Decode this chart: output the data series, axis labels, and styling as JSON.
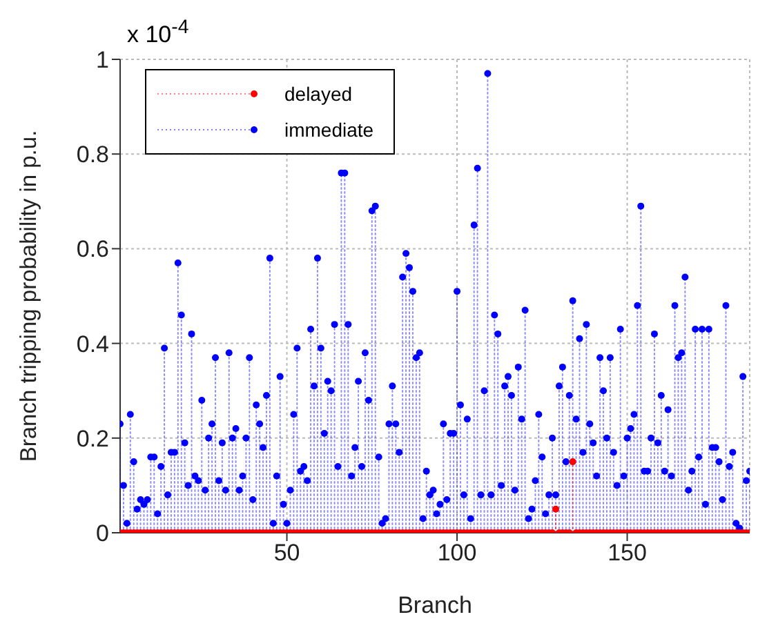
{
  "chart_data": {
    "type": "lollipop",
    "xlabel": "Branch",
    "ylabel": "Branch tripping probability in p.u.",
    "annotations": [
      "x 10$^{-4}$"
    ],
    "x": [
      1,
      2,
      3,
      4,
      5,
      6,
      7,
      8,
      9,
      10,
      11,
      12,
      13,
      14,
      15,
      16,
      17,
      18,
      19,
      20,
      21,
      22,
      23,
      24,
      25,
      26,
      27,
      28,
      29,
      30,
      31,
      32,
      33,
      34,
      35,
      36,
      37,
      38,
      39,
      40,
      41,
      42,
      43,
      44,
      45,
      46,
      47,
      48,
      49,
      50,
      51,
      52,
      53,
      54,
      55,
      56,
      57,
      58,
      59,
      60,
      61,
      62,
      63,
      64,
      65,
      66,
      67,
      68,
      69,
      70,
      71,
      72,
      73,
      74,
      75,
      76,
      77,
      78,
      79,
      80,
      81,
      82,
      83,
      84,
      85,
      86,
      87,
      88,
      89,
      90,
      91,
      92,
      93,
      94,
      95,
      96,
      97,
      98,
      99,
      100,
      101,
      102,
      103,
      104,
      105,
      106,
      107,
      108,
      109,
      110,
      111,
      112,
      113,
      114,
      115,
      116,
      117,
      118,
      119,
      120,
      121,
      122,
      123,
      124,
      125,
      126,
      127,
      128,
      129,
      130,
      131,
      132,
      133,
      134,
      135,
      136,
      137,
      138,
      139,
      140,
      141,
      142,
      143,
      144,
      145,
      146,
      147,
      148,
      149,
      150,
      151,
      152,
      153,
      154,
      155,
      156,
      157,
      158,
      159,
      160,
      161,
      162,
      163,
      164,
      165,
      166,
      167,
      168,
      169,
      170,
      171,
      172,
      173,
      174,
      175,
      176,
      177,
      178,
      179,
      180,
      181,
      182,
      183,
      184,
      185,
      186
    ],
    "series": [
      {
        "name": "immediate",
        "color": "#0000ff",
        "values": [
          0.23,
          0.1,
          0.02,
          0.25,
          0.15,
          0.05,
          0.07,
          0.06,
          0.07,
          0.16,
          0.16,
          0.04,
          0.14,
          0.39,
          0.08,
          0.17,
          0.17,
          0.57,
          0.46,
          0.19,
          0.1,
          0.42,
          0.12,
          0.11,
          0.28,
          0.09,
          0.2,
          0.23,
          0.37,
          0.11,
          0.19,
          0.09,
          0.38,
          0.2,
          0.22,
          0.09,
          0.12,
          0.2,
          0.37,
          0.07,
          0.27,
          0.23,
          0.18,
          0.29,
          0.58,
          0.02,
          0.12,
          0.33,
          0.06,
          0.02,
          0.09,
          0.25,
          0.39,
          0.13,
          0.14,
          0.11,
          0.43,
          0.31,
          0.58,
          0.39,
          0.21,
          0.32,
          0.3,
          0.44,
          0.14,
          0.76,
          0.76,
          0.44,
          0.12,
          0.18,
          0.32,
          0.14,
          0.38,
          0.28,
          0.68,
          0.69,
          0.16,
          0.02,
          0.03,
          0.23,
          0.31,
          0.23,
          0.17,
          0.54,
          0.59,
          0.56,
          0.51,
          0.37,
          0.38,
          0.03,
          0.13,
          0.08,
          0.09,
          0.04,
          0.06,
          0.23,
          0.07,
          0.21,
          0.21,
          0.51,
          0.27,
          0.08,
          0.24,
          0.03,
          0.65,
          0.77,
          0.08,
          0.3,
          0.97,
          0.08,
          0.46,
          0.42,
          0.1,
          0.31,
          0.33,
          0.29,
          0.09,
          0.35,
          0.24,
          0.47,
          0.03,
          0.05,
          0.11,
          0.25,
          0.16,
          0.04,
          0.08,
          0.2,
          0.08,
          0.31,
          0.35,
          0.15,
          0.29,
          0.49,
          0.24,
          0.41,
          0.17,
          0.44,
          0.23,
          0.19,
          0.12,
          0.37,
          0.3,
          0.2,
          0.37,
          0.17,
          0.1,
          0.43,
          0.12,
          0.2,
          0.22,
          0.25,
          0.48,
          0.69,
          0.13,
          0.13,
          0.2,
          0.42,
          0.19,
          0.29,
          0.13,
          0.26,
          0.12,
          0.48,
          0.37,
          0.38,
          0.54,
          0.09,
          0.13,
          0.43,
          0.16,
          0.43,
          0.06,
          0.43,
          0.18,
          0.18,
          0.15,
          0.07,
          0.48,
          0.14,
          0.17,
          0.02,
          0.01,
          0.33,
          0.11,
          0.13
        ]
      },
      {
        "name": "delayed",
        "color": "#ff0000",
        "values": [
          0,
          0,
          0,
          0,
          0,
          0,
          0,
          0,
          0,
          0,
          0,
          0,
          0,
          0,
          0,
          0,
          0,
          0,
          0,
          0,
          0,
          0,
          0,
          0,
          0,
          0,
          0,
          0,
          0,
          0,
          0,
          0,
          0,
          0,
          0,
          0,
          0,
          0,
          0,
          0,
          0,
          0,
          0,
          0,
          0,
          0,
          0,
          0,
          0,
          0,
          0,
          0,
          0,
          0,
          0,
          0,
          0,
          0,
          0,
          0,
          0,
          0,
          0,
          0,
          0,
          0,
          0,
          0,
          0,
          0,
          0,
          0,
          0,
          0,
          0,
          0,
          0,
          0,
          0,
          0,
          0,
          0,
          0,
          0,
          0,
          0,
          0,
          0,
          0,
          0,
          0,
          0,
          0,
          0,
          0,
          0,
          0,
          0,
          0,
          0,
          0,
          0,
          0,
          0,
          0,
          0,
          0,
          0,
          0,
          0,
          0,
          0,
          0,
          0,
          0,
          0,
          0,
          0,
          0,
          0,
          0,
          0,
          0,
          0,
          0,
          0,
          0,
          0,
          0.05,
          0,
          0,
          0,
          0,
          0.15,
          0,
          0,
          0,
          0,
          0,
          0,
          0,
          0,
          0,
          0,
          0,
          0,
          0,
          0,
          0,
          0,
          0,
          0,
          0,
          0,
          0,
          0,
          0,
          0,
          0,
          0,
          0,
          0,
          0,
          0,
          0,
          0,
          0,
          0,
          0,
          0,
          0,
          0,
          0,
          0,
          0,
          0,
          0,
          0,
          0,
          0,
          0,
          0,
          0,
          0,
          0,
          0
        ]
      }
    ],
    "xlim": [
      1,
      186
    ],
    "xticks": [
      50,
      100,
      150
    ],
    "ylim": [
      0,
      1
    ],
    "yticks": [
      0,
      0.2,
      0.4,
      0.6,
      0.8,
      1
    ],
    "grid": true,
    "legend": "top left",
    "marker": "circle",
    "line_style": "dotted"
  }
}
